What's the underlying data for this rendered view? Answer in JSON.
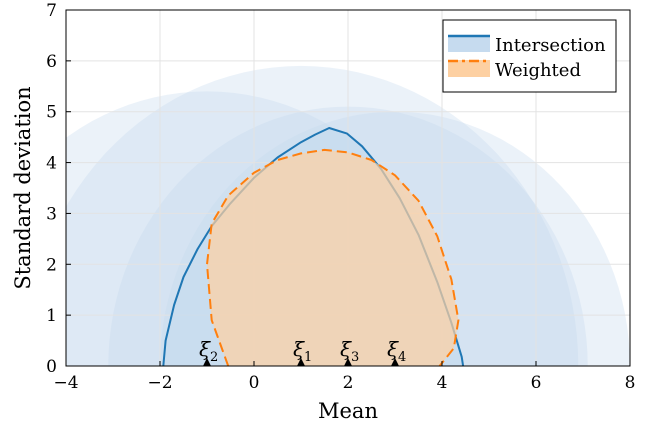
{
  "chart_data": {
    "type": "area",
    "title": "",
    "xlabel": "Mean",
    "ylabel": "Standard deviation",
    "xlim": [
      -4,
      8
    ],
    "ylim": [
      0,
      7
    ],
    "x_ticks": [
      -4,
      -2,
      0,
      2,
      4,
      6,
      8
    ],
    "y_ticks": [
      0,
      1,
      2,
      3,
      4,
      5,
      6,
      7
    ],
    "x_tick_labels": [
      "−4",
      "−2",
      "0",
      "2",
      "4",
      "6",
      "8"
    ],
    "y_tick_labels": [
      "0",
      "1",
      "2",
      "3",
      "4",
      "5",
      "6",
      "7"
    ],
    "grid": true,
    "legend_position": "top-right",
    "background_regions": [
      {
        "center_x": -1.0,
        "radius": 5.4
      },
      {
        "center_x": 1.0,
        "radius": 5.9
      },
      {
        "center_x": 2.0,
        "radius": 5.1
      },
      {
        "center_x": 3.0,
        "radius": 5.0
      }
    ],
    "series": [
      {
        "name": "Intersection",
        "color": "#1f77b4",
        "fill": "#c6dbef",
        "line_style": "solid",
        "x": [
          -1.93,
          -1.88,
          -1.7,
          -1.5,
          -1.2,
          -0.9,
          -0.5,
          0.0,
          0.5,
          1.0,
          1.3,
          1.6,
          1.98,
          2.3,
          2.7,
          3.1,
          3.5,
          3.9,
          4.2,
          4.42,
          4.45
        ],
        "y": [
          0.0,
          0.5,
          1.2,
          1.75,
          2.3,
          2.75,
          3.2,
          3.7,
          4.1,
          4.4,
          4.55,
          4.68,
          4.57,
          4.32,
          3.88,
          3.3,
          2.58,
          1.65,
          0.85,
          0.18,
          0.0
        ]
      },
      {
        "name": "Weighted",
        "color": "#ff7f0e",
        "fill": "#fdd0a2",
        "line_style": "dashed",
        "x": [
          -0.55,
          -0.9,
          -1.0,
          -0.9,
          -0.55,
          0.0,
          0.5,
          1.0,
          1.5,
          2.0,
          2.5,
          3.0,
          3.5,
          3.9,
          4.2,
          4.35,
          4.25,
          3.95
        ],
        "y": [
          0.0,
          0.9,
          2.0,
          2.8,
          3.35,
          3.8,
          4.05,
          4.18,
          4.25,
          4.2,
          4.05,
          3.75,
          3.25,
          2.55,
          1.7,
          0.9,
          0.35,
          0.0
        ]
      }
    ],
    "markers": [
      {
        "symbol": "ξ",
        "subscript": "1",
        "x": 1.0,
        "y": 0.0
      },
      {
        "symbol": "ξ",
        "subscript": "2",
        "x": -1.0,
        "y": 0.0
      },
      {
        "symbol": "ξ",
        "subscript": "3",
        "x": 2.0,
        "y": 0.0
      },
      {
        "symbol": "ξ",
        "subscript": "4",
        "x": 3.0,
        "y": 0.0
      }
    ],
    "colors": {
      "background_region": "#c6dbef",
      "grid": "#e3e3e3",
      "marker": "#000000"
    }
  }
}
